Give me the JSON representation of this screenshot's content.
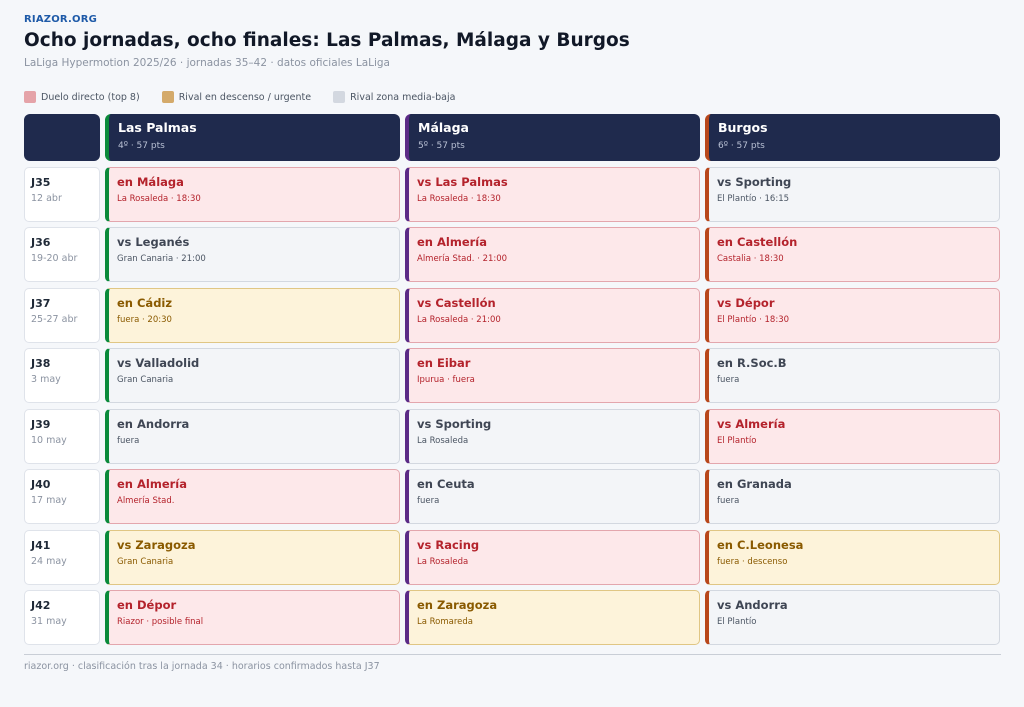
{
  "brand": "RIAZOR.ORG",
  "title": "Ocho jornadas, ocho finales: Las Palmas, Málaga y Burgos",
  "subtitle": "LaLiga Hypermotion 2025/26 · jornadas 35–42 · datos oficiales LaLiga",
  "legend": [
    {
      "label": "Duelo directo (top 8)",
      "color": "#e5a3a8"
    },
    {
      "label": "Rival en descenso / urgente",
      "color": "#d4aa6a"
    },
    {
      "label": "Rival zona media-baja",
      "color": "#d3d8e0"
    }
  ],
  "colors": {
    "header_bg": "#1f2a4d",
    "las_palmas": "#0a8a3a",
    "malaga": "#5b2a86",
    "burgos": "#b8471b"
  },
  "teams": [
    {
      "name": "Las Palmas",
      "meta": "4º · 57 pts",
      "accent": "#0a8a3a"
    },
    {
      "name": "Málaga",
      "meta": "5º · 57 pts",
      "accent": "#5b2a86"
    },
    {
      "name": "Burgos",
      "meta": "6º · 57 pts",
      "accent": "#b8471b"
    }
  ],
  "rounds": [
    {
      "id": "J35",
      "date": "12 abr",
      "matches": [
        {
          "title": "en Málaga",
          "detail": "La Rosaleda · 18:30",
          "type": "direct"
        },
        {
          "title": "vs Las Palmas",
          "detail": "La Rosaleda · 18:30",
          "type": "direct"
        },
        {
          "title": "vs Sporting",
          "detail": "El Plantío · 16:15",
          "type": "mid"
        }
      ]
    },
    {
      "id": "J36",
      "date": "19-20 abr",
      "matches": [
        {
          "title": "vs Leganés",
          "detail": "Gran Canaria · 21:00",
          "type": "mid"
        },
        {
          "title": "en Almería",
          "detail": "Almería Stad. · 21:00",
          "type": "direct"
        },
        {
          "title": "en Castellón",
          "detail": "Castalia · 18:30",
          "type": "direct"
        }
      ]
    },
    {
      "id": "J37",
      "date": "25-27 abr",
      "matches": [
        {
          "title": "en Cádiz",
          "detail": "fuera · 20:30",
          "type": "urgent"
        },
        {
          "title": "vs Castellón",
          "detail": "La Rosaleda · 21:00",
          "type": "direct"
        },
        {
          "title": "vs Dépor",
          "detail": "El Plantío · 18:30",
          "type": "direct"
        }
      ]
    },
    {
      "id": "J38",
      "date": "3 may",
      "matches": [
        {
          "title": "vs Valladolid",
          "detail": "Gran Canaria",
          "type": "mid"
        },
        {
          "title": "en Eibar",
          "detail": "Ipurua · fuera",
          "type": "direct"
        },
        {
          "title": "en R.Soc.B",
          "detail": "fuera",
          "type": "mid"
        }
      ]
    },
    {
      "id": "J39",
      "date": "10 may",
      "matches": [
        {
          "title": "en Andorra",
          "detail": "fuera",
          "type": "mid"
        },
        {
          "title": "vs Sporting",
          "detail": "La Rosaleda",
          "type": "mid"
        },
        {
          "title": "vs Almería",
          "detail": "El Plantío",
          "type": "direct"
        }
      ]
    },
    {
      "id": "J40",
      "date": "17 may",
      "matches": [
        {
          "title": "en Almería",
          "detail": "Almería Stad.",
          "type": "direct"
        },
        {
          "title": "en Ceuta",
          "detail": "fuera",
          "type": "mid"
        },
        {
          "title": "en Granada",
          "detail": "fuera",
          "type": "mid"
        }
      ]
    },
    {
      "id": "J41",
      "date": "24 may",
      "matches": [
        {
          "title": "vs Zaragoza",
          "detail": "Gran Canaria",
          "type": "urgent"
        },
        {
          "title": "vs Racing",
          "detail": "La Rosaleda",
          "type": "direct"
        },
        {
          "title": "en C.Leonesa",
          "detail": "fuera · descenso",
          "type": "urgent"
        }
      ]
    },
    {
      "id": "J42",
      "date": "31 may",
      "matches": [
        {
          "title": "en Dépor",
          "detail": "Riazor · posible final",
          "type": "direct"
        },
        {
          "title": "en Zaragoza",
          "detail": "La Romareda",
          "type": "urgent"
        },
        {
          "title": "vs Andorra",
          "detail": "El Plantío",
          "type": "mid"
        }
      ]
    }
  ],
  "footer": "riazor.org · clasificación tras la jornada 34 · horarios confirmados hasta J37"
}
